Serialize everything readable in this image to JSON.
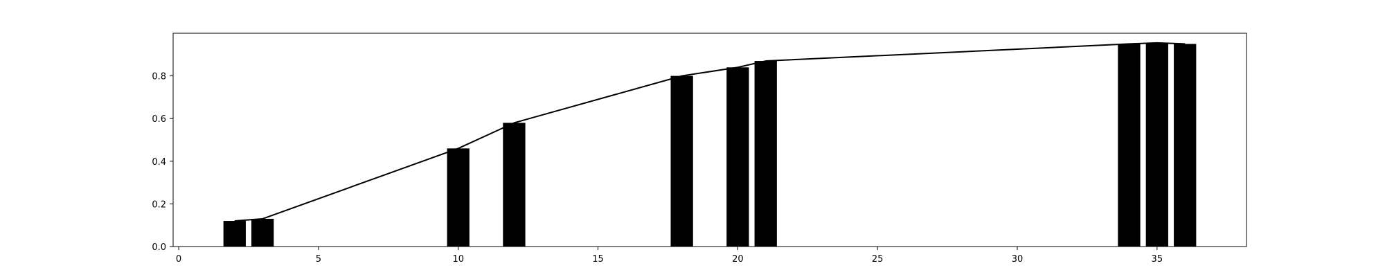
{
  "chart_data": {
    "type": "bar",
    "title": "",
    "xlabel": "",
    "ylabel": "",
    "xlim": [
      -0.2,
      38.2
    ],
    "ylim": [
      0.0,
      1.0
    ],
    "grid": false,
    "bar_color": "#000000",
    "line_color": "#000000",
    "bar_width": 0.8,
    "x": [
      2,
      3,
      10,
      12,
      18,
      20,
      21,
      34,
      35,
      36
    ],
    "values": [
      0.12,
      0.13,
      0.46,
      0.58,
      0.8,
      0.84,
      0.87,
      0.95,
      0.955,
      0.95
    ],
    "line": {
      "x": [
        2,
        3,
        10,
        12,
        18,
        20,
        21,
        34,
        35,
        36
      ],
      "y": [
        0.12,
        0.13,
        0.46,
        0.58,
        0.8,
        0.84,
        0.87,
        0.95,
        0.955,
        0.95
      ]
    },
    "x_ticks": [
      0,
      5,
      10,
      15,
      20,
      25,
      30,
      35
    ],
    "x_tick_labels": [
      "0",
      "5",
      "10",
      "15",
      "20",
      "25",
      "30",
      "35"
    ],
    "y_ticks": [
      0.0,
      0.2,
      0.4,
      0.6,
      0.8
    ],
    "y_tick_labels": [
      "0.0",
      "0.2",
      "0.4",
      "0.6",
      "0.8"
    ]
  }
}
